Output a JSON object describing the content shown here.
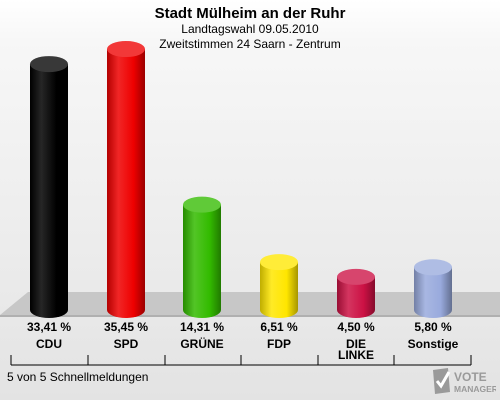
{
  "title": "Stadt Mülheim an der Ruhr",
  "subtitle1": "Landtagswahl 09.05.2010",
  "subtitle2": "Zweitstimmen 24 Saarn - Zentrum",
  "footer": "5 von 5 Schnellmeldungen",
  "logo": {
    "line1": "VOTE",
    "line2": "MANAGER"
  },
  "chart_data": {
    "type": "bar",
    "categories": [
      "CDU",
      "SPD",
      "GRÜNE",
      "FDP",
      "DIE LINKE",
      "Sonstige"
    ],
    "values": [
      33.41,
      35.45,
      14.31,
      6.51,
      4.5,
      5.8
    ],
    "value_labels": [
      "33,41 %",
      "35,45 %",
      "14,31 %",
      "6,51 %",
      "4,50 %",
      "5,80 %"
    ],
    "colors": [
      "#000000",
      "#ee0000",
      "#33bb00",
      "#ffe600",
      "#cc1144",
      "#99aadd"
    ],
    "ylim": [
      0,
      36
    ],
    "grid": false,
    "legend": "none"
  }
}
